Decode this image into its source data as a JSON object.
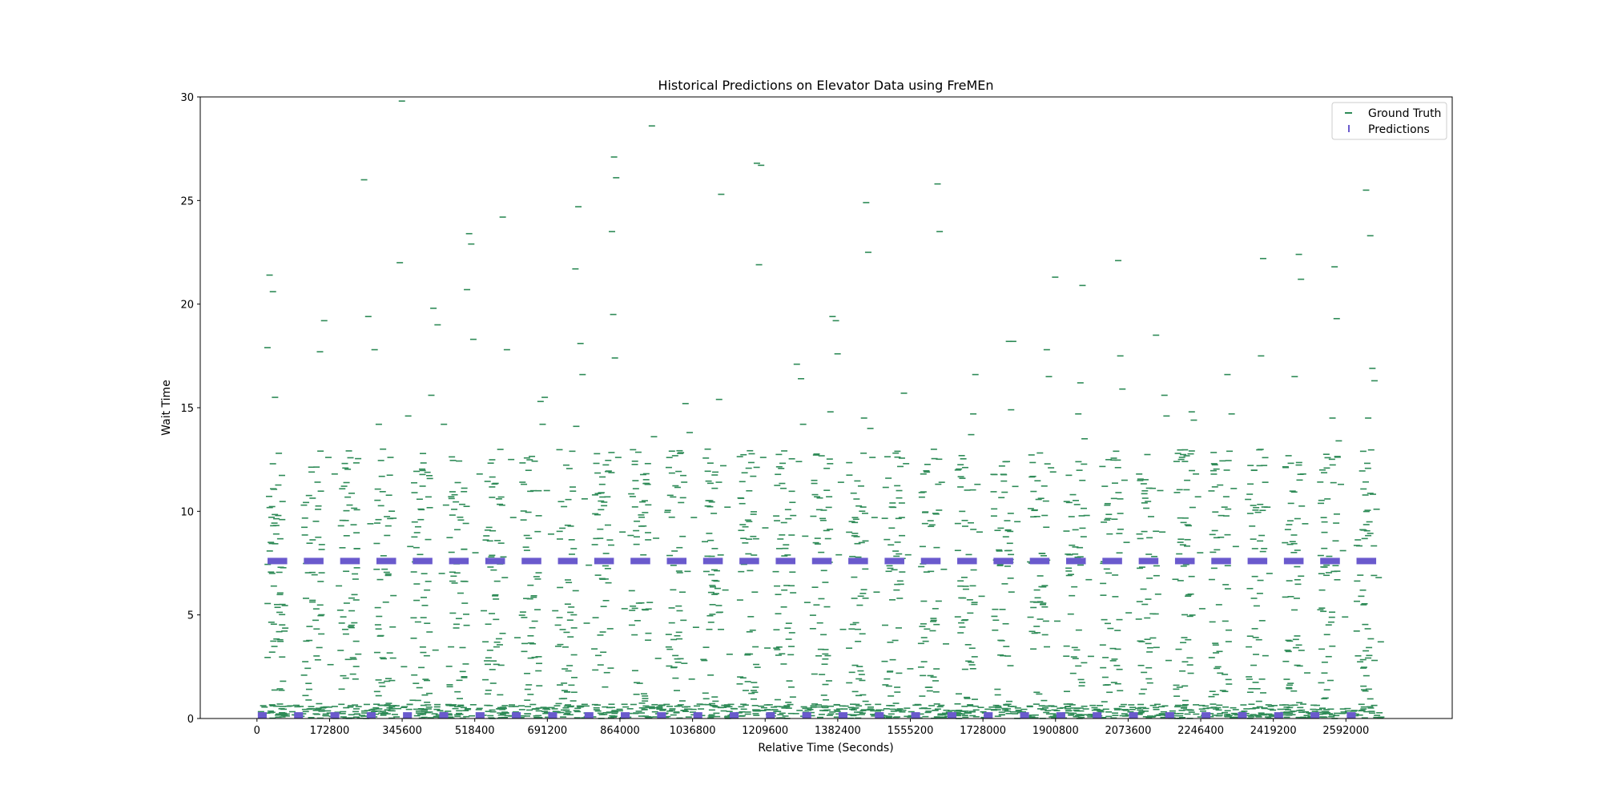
{
  "chart_data": {
    "type": "scatter",
    "title": "Historical Predictions on Elevator Data using FreMEn",
    "xlabel": "Relative Time (Seconds)",
    "ylabel": "Wait Time",
    "xlim": [
      -135000,
      2845000
    ],
    "ylim": [
      0,
      30
    ],
    "xticks": [
      0,
      172800,
      345600,
      518400,
      691200,
      864000,
      1036800,
      1209600,
      1382400,
      1555200,
      1728000,
      1900800,
      2073600,
      2246400,
      2419200,
      2592000
    ],
    "xtick_labels": [
      "0",
      "172800",
      "345600",
      "518400",
      "691200",
      "864000",
      "1036800",
      "1209600",
      "1382400",
      "1555200",
      "1728000",
      "1900800",
      "2073600",
      "2246400",
      "2419200",
      "2592000"
    ],
    "yticks": [
      0,
      5,
      10,
      15,
      20,
      25,
      30
    ],
    "ytick_labels": [
      "0",
      "5",
      "10",
      "15",
      "20",
      "25",
      "30"
    ],
    "grid": false,
    "legend_position": "top-right",
    "colors": {
      "ground_truth": "#2e8b57",
      "predictions": "#6a5acd"
    },
    "series": [
      {
        "name": "Ground Truth",
        "marker": "horizontal-dash",
        "color": "#2e8b57",
        "day_seconds": 86400,
        "day_count": 31,
        "active_hours_start": 25200,
        "active_hours_end": 68400,
        "points": [
          [
            25000,
            17.9
          ],
          [
            30000,
            21.4
          ],
          [
            38000,
            20.6
          ],
          [
            43000,
            15.5
          ],
          [
            52000,
            12.8
          ],
          [
            60000,
            9.6
          ],
          [
            33000,
            8.5
          ],
          [
            48000,
            5.5
          ],
          [
            55000,
            3.8
          ],
          [
            62000,
            1.8
          ],
          [
            160000,
            19.2
          ],
          [
            150000,
            17.7
          ],
          [
            170000,
            12.6
          ],
          [
            185000,
            11.8
          ],
          [
            200000,
            9.3
          ],
          [
            195000,
            6.4
          ],
          [
            210000,
            4.3
          ],
          [
            175000,
            2.6
          ],
          [
            255000,
            26.0
          ],
          [
            265000,
            19.4
          ],
          [
            280000,
            17.8
          ],
          [
            290000,
            14.2
          ],
          [
            300000,
            13.0
          ],
          [
            270000,
            9.4
          ],
          [
            285000,
            7.2
          ],
          [
            295000,
            4.0
          ],
          [
            345000,
            29.8
          ],
          [
            340000,
            22.0
          ],
          [
            360000,
            14.6
          ],
          [
            375000,
            10.9
          ],
          [
            365000,
            8.3
          ],
          [
            380000,
            5.7
          ],
          [
            350000,
            2.5
          ],
          [
            420000,
            19.8
          ],
          [
            430000,
            19.0
          ],
          [
            415000,
            15.6
          ],
          [
            445000,
            14.2
          ],
          [
            450000,
            10.3
          ],
          [
            440000,
            7.0
          ],
          [
            425000,
            3.3
          ],
          [
            505000,
            23.4
          ],
          [
            510000,
            22.9
          ],
          [
            500000,
            20.7
          ],
          [
            515000,
            18.3
          ],
          [
            530000,
            11.8
          ],
          [
            520000,
            8.0
          ],
          [
            540000,
            5.2
          ],
          [
            585000,
            24.2
          ],
          [
            595000,
            17.8
          ],
          [
            605000,
            12.5
          ],
          [
            610000,
            9.7
          ],
          [
            590000,
            6.8
          ],
          [
            620000,
            3.9
          ],
          [
            675000,
            15.3
          ],
          [
            685000,
            15.5
          ],
          [
            680000,
            14.2
          ],
          [
            690000,
            11.0
          ],
          [
            700000,
            8.9
          ],
          [
            710000,
            5.2
          ],
          [
            670000,
            2.3
          ],
          [
            765000,
            24.7
          ],
          [
            758000,
            21.7
          ],
          [
            770000,
            18.1
          ],
          [
            775000,
            16.6
          ],
          [
            760000,
            14.1
          ],
          [
            780000,
            10.6
          ],
          [
            790000,
            7.4
          ],
          [
            785000,
            4.6
          ],
          [
            850000,
            27.1
          ],
          [
            855000,
            26.1
          ],
          [
            845000,
            23.5
          ],
          [
            848000,
            19.5
          ],
          [
            852000,
            17.4
          ],
          [
            860000,
            12.6
          ],
          [
            870000,
            9.0
          ],
          [
            875000,
            5.3
          ],
          [
            940000,
            28.6
          ],
          [
            945000,
            13.6
          ],
          [
            930000,
            11.3
          ],
          [
            950000,
            8.7
          ],
          [
            935000,
            5.6
          ],
          [
            955000,
            2.9
          ],
          [
            1020000,
            15.2
          ],
          [
            1030000,
            13.8
          ],
          [
            1040000,
            9.7
          ],
          [
            1025000,
            7.1
          ],
          [
            1045000,
            4.4
          ],
          [
            1035000,
            1.9
          ],
          [
            1105000,
            25.3
          ],
          [
            1100000,
            15.4
          ],
          [
            1110000,
            12.2
          ],
          [
            1120000,
            10.2
          ],
          [
            1115000,
            6.2
          ],
          [
            1125000,
            3.1
          ],
          [
            1190000,
            26.8
          ],
          [
            1200000,
            26.7
          ],
          [
            1195000,
            21.9
          ],
          [
            1205000,
            12.6
          ],
          [
            1210000,
            9.2
          ],
          [
            1185000,
            6.1
          ],
          [
            1215000,
            3.4
          ],
          [
            1285000,
            17.1
          ],
          [
            1295000,
            16.4
          ],
          [
            1300000,
            14.2
          ],
          [
            1290000,
            12.4
          ],
          [
            1305000,
            8.8
          ],
          [
            1310000,
            5.6
          ],
          [
            1370000,
            19.4
          ],
          [
            1378000,
            19.2
          ],
          [
            1382000,
            17.6
          ],
          [
            1365000,
            14.8
          ],
          [
            1390000,
            11.4
          ],
          [
            1385000,
            7.9
          ],
          [
            1395000,
            4.3
          ],
          [
            1450000,
            24.9
          ],
          [
            1455000,
            22.5
          ],
          [
            1445000,
            14.5
          ],
          [
            1460000,
            14.0
          ],
          [
            1465000,
            12.6
          ],
          [
            1470000,
            9.7
          ],
          [
            1475000,
            6.1
          ],
          [
            1540000,
            15.7
          ],
          [
            1545000,
            12.3
          ],
          [
            1535000,
            10.4
          ],
          [
            1550000,
            7.9
          ],
          [
            1530000,
            5.8
          ],
          [
            1555000,
            2.4
          ],
          [
            1620000,
            25.8
          ],
          [
            1625000,
            23.5
          ],
          [
            1630000,
            11.4
          ],
          [
            1615000,
            9.9
          ],
          [
            1635000,
            7.2
          ],
          [
            1640000,
            3.6
          ],
          [
            1710000,
            16.6
          ],
          [
            1705000,
            14.7
          ],
          [
            1700000,
            13.7
          ],
          [
            1715000,
            11.3
          ],
          [
            1720000,
            9.0
          ],
          [
            1725000,
            5.9
          ],
          [
            1790000,
            18.2
          ],
          [
            1800000,
            18.2
          ],
          [
            1795000,
            14.9
          ],
          [
            1785000,
            12.4
          ],
          [
            1805000,
            11.2
          ],
          [
            1810000,
            9.5
          ],
          [
            1780000,
            6.5
          ],
          [
            1880000,
            17.8
          ],
          [
            1885000,
            16.5
          ],
          [
            1890000,
            12.1
          ],
          [
            1895000,
            11.9
          ],
          [
            1875000,
            9.8
          ],
          [
            1900000,
            21.3
          ],
          [
            1905000,
            4.7
          ],
          [
            1965000,
            20.9
          ],
          [
            1960000,
            16.2
          ],
          [
            1955000,
            14.7
          ],
          [
            1970000,
            13.5
          ],
          [
            1975000,
            9.8
          ],
          [
            1980000,
            6.7
          ],
          [
            1985000,
            3.0
          ],
          [
            2050000,
            22.1
          ],
          [
            2055000,
            17.5
          ],
          [
            2060000,
            15.9
          ],
          [
            2045000,
            12.9
          ],
          [
            2065000,
            11.5
          ],
          [
            2070000,
            8.5
          ],
          [
            2075000,
            5.1
          ],
          [
            2140000,
            18.5
          ],
          [
            2160000,
            15.6
          ],
          [
            2165000,
            14.6
          ],
          [
            2150000,
            11.0
          ],
          [
            2155000,
            9.0
          ],
          [
            2145000,
            6.0
          ],
          [
            2170000,
            2.8
          ],
          [
            2225000,
            14.8
          ],
          [
            2230000,
            14.4
          ],
          [
            2235000,
            11.8
          ],
          [
            2240000,
            10.7
          ],
          [
            2245000,
            8.0
          ],
          [
            2250000,
            5.3
          ],
          [
            2310000,
            16.6
          ],
          [
            2320000,
            14.7
          ],
          [
            2315000,
            12.9
          ],
          [
            2325000,
            11.1
          ],
          [
            2330000,
            8.3
          ],
          [
            2305000,
            4.7
          ],
          [
            2395000,
            22.2
          ],
          [
            2390000,
            17.5
          ],
          [
            2400000,
            11.4
          ],
          [
            2405000,
            10.2
          ],
          [
            2410000,
            7.0
          ],
          [
            2385000,
            3.8
          ],
          [
            2480000,
            22.4
          ],
          [
            2485000,
            21.2
          ],
          [
            2470000,
            16.5
          ],
          [
            2490000,
            11.8
          ],
          [
            2495000,
            9.4
          ],
          [
            2475000,
            5.8
          ],
          [
            2500000,
            2.2
          ],
          [
            2565000,
            21.8
          ],
          [
            2570000,
            19.3
          ],
          [
            2560000,
            14.5
          ],
          [
            2575000,
            13.4
          ],
          [
            2580000,
            11.3
          ],
          [
            2585000,
            8.1
          ],
          [
            2590000,
            4.9
          ],
          [
            2640000,
            25.5
          ],
          [
            2650000,
            23.3
          ],
          [
            2655000,
            16.9
          ],
          [
            2660000,
            16.3
          ],
          [
            2645000,
            14.5
          ],
          [
            2665000,
            10.1
          ],
          [
            2670000,
            6.8
          ],
          [
            2675000,
            3.7
          ]
        ]
      },
      {
        "name": "Predictions",
        "marker": "vertical-tick",
        "color": "#6a5acd",
        "day_seconds": 86400,
        "day_count": 31,
        "day_start": 25200,
        "day_end": 72000,
        "high_value": 7.6,
        "high_start": 25200,
        "high_end": 72000,
        "low_value": 0.15,
        "low_start": 0,
        "low_end": 25200
      }
    ]
  }
}
